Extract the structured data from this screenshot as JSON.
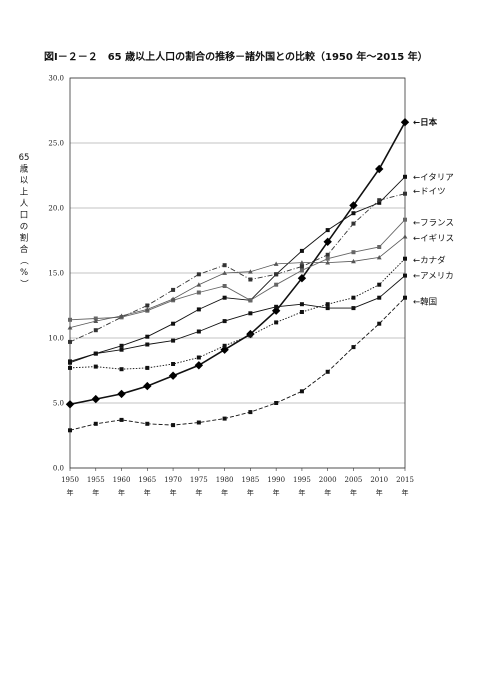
{
  "title": "図Ⅰ－２－２　65 歳以上人口の割合の推移－諸外国との比較（1950 年～2015 年）",
  "chart_data": {
    "type": "line",
    "title": "図Ⅰ－２－２　65 歳以上人口の割合の推移－諸外国との比較（1950 年～2015 年）",
    "ylabel": "65歳以上人口の割合（%）",
    "xlabel": "",
    "x": [
      "1950",
      "1955",
      "1960",
      "1965",
      "1970",
      "1975",
      "1980",
      "1985",
      "1990",
      "1995",
      "2000",
      "2005",
      "2010",
      "2015"
    ],
    "x_suffix": "年",
    "ylim": [
      0,
      30
    ],
    "yticks": [
      "0.0",
      "5.0",
      "10.0",
      "15.0",
      "20.0",
      "25.0",
      "30.0"
    ],
    "grid": "horizontal",
    "series": [
      {
        "name": "日本",
        "values": [
          4.9,
          5.3,
          5.7,
          6.3,
          7.1,
          7.9,
          9.1,
          10.3,
          12.1,
          14.6,
          17.4,
          20.2,
          23.0,
          26.6
        ],
        "style": "thick-diamond"
      },
      {
        "name": "イタリア",
        "values": [
          8.1,
          8.8,
          9.4,
          10.1,
          11.1,
          12.2,
          13.1,
          12.9,
          14.9,
          16.7,
          18.3,
          19.6,
          20.4,
          22.4
        ],
        "style": "square"
      },
      {
        "name": "ドイツ",
        "values": [
          9.7,
          10.6,
          11.6,
          12.5,
          13.7,
          14.9,
          15.6,
          14.5,
          14.9,
          15.5,
          16.4,
          18.8,
          20.6,
          21.1
        ],
        "style": "dashdot-square"
      },
      {
        "name": "フランス",
        "values": [
          11.4,
          11.5,
          11.6,
          12.1,
          12.9,
          13.5,
          14.0,
          12.9,
          14.1,
          15.2,
          16.1,
          16.6,
          17.0,
          19.1
        ],
        "style": "square"
      },
      {
        "name": "イギリス",
        "values": [
          10.8,
          11.3,
          11.7,
          12.2,
          13.0,
          14.1,
          15.0,
          15.1,
          15.7,
          15.8,
          15.8,
          15.9,
          16.2,
          17.8
        ],
        "style": "triangle"
      },
      {
        "name": "カナダ",
        "values": [
          7.7,
          7.8,
          7.6,
          7.7,
          8.0,
          8.5,
          9.4,
          10.2,
          11.2,
          12.0,
          12.6,
          13.1,
          14.1,
          16.1
        ],
        "style": "dotted-square"
      },
      {
        "name": "アメリカ",
        "values": [
          8.2,
          8.8,
          9.1,
          9.5,
          9.8,
          10.5,
          11.3,
          11.9,
          12.4,
          12.6,
          12.3,
          12.3,
          13.1,
          14.8
        ],
        "style": "square"
      },
      {
        "name": "韓国",
        "values": [
          2.9,
          3.4,
          3.7,
          3.4,
          3.3,
          3.5,
          3.8,
          4.3,
          5.0,
          5.9,
          7.4,
          9.3,
          11.1,
          13.1
        ],
        "style": "dashed-square"
      }
    ]
  }
}
